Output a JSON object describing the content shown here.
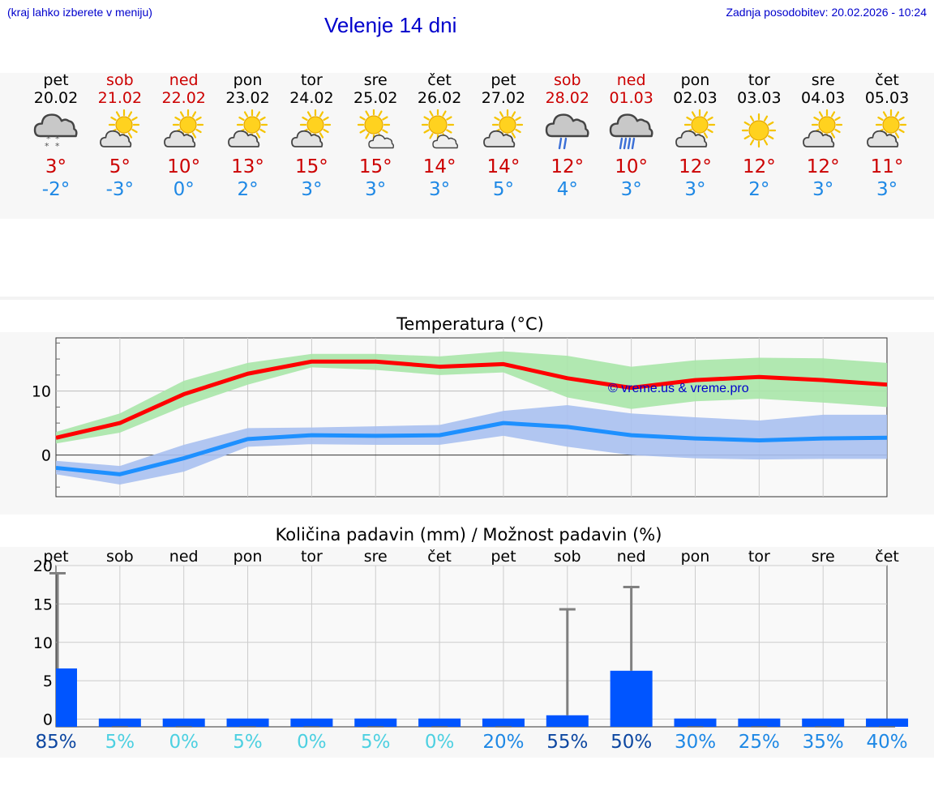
{
  "header": {
    "hint": "(kraj lahko izberete v meniju)",
    "title": "Velenje 14 dni",
    "updated": "Zadnja posodobitev: 20.02.2026 - 10:24"
  },
  "days": [
    {
      "name": "pet",
      "date": "20.02",
      "weekend": false,
      "icon": "snow-cloud",
      "tmax": "3°",
      "tmin": "-2°",
      "precip_pct": "85%"
    },
    {
      "name": "sob",
      "date": "21.02",
      "weekend": true,
      "icon": "sun-cloud",
      "tmax": "5°",
      "tmin": "-3°",
      "precip_pct": "5%"
    },
    {
      "name": "ned",
      "date": "22.02",
      "weekend": true,
      "icon": "sun-cloud",
      "tmax": "10°",
      "tmin": "0°",
      "precip_pct": "0%"
    },
    {
      "name": "pon",
      "date": "23.02",
      "weekend": false,
      "icon": "sun-cloud",
      "tmax": "13°",
      "tmin": "2°",
      "precip_pct": "5%"
    },
    {
      "name": "tor",
      "date": "24.02",
      "weekend": false,
      "icon": "sun-cloud",
      "tmax": "15°",
      "tmin": "3°",
      "precip_pct": "0%"
    },
    {
      "name": "sre",
      "date": "25.02",
      "weekend": false,
      "icon": "sun-small-cloud",
      "tmax": "15°",
      "tmin": "3°",
      "precip_pct": "5%"
    },
    {
      "name": "čet",
      "date": "26.02",
      "weekend": false,
      "icon": "sun-small-cloud",
      "tmax": "14°",
      "tmin": "3°",
      "precip_pct": "0%"
    },
    {
      "name": "pet",
      "date": "27.02",
      "weekend": false,
      "icon": "sun-cloud",
      "tmax": "14°",
      "tmin": "5°",
      "precip_pct": "20%"
    },
    {
      "name": "sob",
      "date": "28.02",
      "weekend": true,
      "icon": "rain-cloud",
      "tmax": "12°",
      "tmin": "4°",
      "precip_pct": "55%"
    },
    {
      "name": "ned",
      "date": "01.03",
      "weekend": true,
      "icon": "heavy-rain-cloud",
      "tmax": "10°",
      "tmin": "3°",
      "precip_pct": "50%"
    },
    {
      "name": "pon",
      "date": "02.03",
      "weekend": false,
      "icon": "sun-cloud",
      "tmax": "12°",
      "tmin": "3°",
      "precip_pct": "30%"
    },
    {
      "name": "tor",
      "date": "03.03",
      "weekend": false,
      "icon": "sun",
      "tmax": "12°",
      "tmin": "2°",
      "precip_pct": "25%"
    },
    {
      "name": "sre",
      "date": "04.03",
      "weekend": false,
      "icon": "sun-cloud",
      "tmax": "12°",
      "tmin": "3°",
      "precip_pct": "35%"
    },
    {
      "name": "čet",
      "date": "05.03",
      "weekend": false,
      "icon": "sun-cloud",
      "tmax": "11°",
      "tmin": "3°",
      "precip_pct": "40%"
    }
  ],
  "colors": {
    "max": "#ff0000",
    "min": "#1e90ff",
    "max_band": "#a8e6a8",
    "min_band": "#a9c0f0",
    "bar": "#0055ff",
    "error": "#808080",
    "weekend": "#cc0000"
  },
  "chart_data": [
    {
      "type": "line",
      "title": "Temperatura (°C)",
      "watermark": "© vreme.us & vreme.pro",
      "ylim": [
        -6.5,
        18.3
      ],
      "yticks": [
        0,
        10
      ],
      "x": [
        0,
        1,
        2,
        3,
        4,
        5,
        6,
        7,
        8,
        9,
        10,
        11,
        12,
        13
      ],
      "series": [
        {
          "name": "max",
          "values": [
            2.7,
            5,
            9.5,
            12.7,
            14.6,
            14.6,
            13.8,
            14.2,
            12,
            10.5,
            11.7,
            12.2,
            11.7,
            11
          ],
          "band_low": [
            1.8,
            3.5,
            7.6,
            11,
            13.7,
            13.3,
            12.5,
            12.9,
            9,
            7.2,
            8.4,
            8.8,
            8.2,
            7.5
          ],
          "band_high": [
            3.6,
            6.5,
            11.6,
            14.4,
            15.8,
            15.8,
            15.4,
            16.2,
            15.5,
            13.8,
            14.8,
            15.2,
            15.1,
            14.4
          ]
        },
        {
          "name": "min",
          "values": [
            -2,
            -3,
            -0.5,
            2.5,
            3.1,
            3,
            3.1,
            5,
            4.4,
            3.1,
            2.6,
            2.3,
            2.6,
            2.7
          ],
          "band_low": [
            -3,
            -4.6,
            -2.6,
            1.3,
            1.7,
            1.6,
            1.6,
            3,
            1.3,
            0,
            -0.5,
            -0.7,
            -0.6,
            -0.6
          ],
          "band_high": [
            -0.9,
            -1.7,
            1.6,
            4.2,
            4.3,
            4.5,
            4.7,
            6.9,
            7.8,
            6.5,
            5.9,
            5.4,
            6.3,
            6.3
          ]
        }
      ]
    },
    {
      "type": "bar",
      "title": "Količina padavin (mm) / Možnost padavin (%)",
      "ylim": [
        -1,
        20
      ],
      "yticks": [
        0,
        5,
        10,
        15,
        20
      ],
      "categories": [
        "pet",
        "sob",
        "ned",
        "pon",
        "tor",
        "sre",
        "čet",
        "pet",
        "sob",
        "ned",
        "pon",
        "tor",
        "sre",
        "čet"
      ],
      "values": [
        6.6,
        0,
        0,
        0,
        0,
        0,
        0,
        0,
        0.5,
        6.3,
        0,
        0,
        0,
        0
      ],
      "error_high": [
        19,
        0,
        0,
        0,
        0,
        0,
        0,
        0,
        14.3,
        17.2,
        0,
        0,
        0,
        0
      ]
    }
  ]
}
